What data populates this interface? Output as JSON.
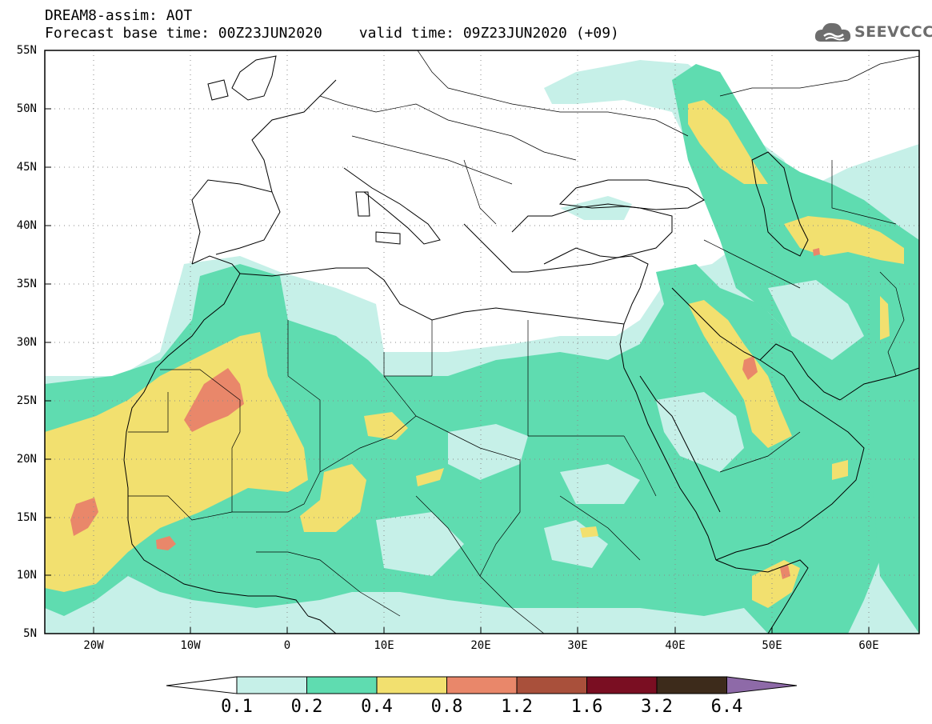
{
  "header": {
    "title": "DREAM8-assim: AOT",
    "base_time": "Forecast base time: 00Z23JUN2020",
    "valid_time": "valid time: 09Z23JUN2020 (+09)"
  },
  "logo": {
    "text": "SEEVCCC",
    "icon": "cloud-logo-icon"
  },
  "map": {
    "lat_labels": [
      "55N",
      "50N",
      "45N",
      "40N",
      "35N",
      "30N",
      "25N",
      "20N",
      "15N",
      "10N",
      "5N"
    ],
    "lon_labels": [
      "20W",
      "10W",
      "0",
      "10E",
      "20E",
      "30E",
      "40E",
      "50E",
      "60E"
    ],
    "lat_range": [
      5,
      55
    ],
    "lon_range": [
      -25,
      65
    ],
    "grid": "dotted"
  },
  "colorbar": {
    "labels": [
      "0.1",
      "0.2",
      "0.4",
      "0.8",
      "1.2",
      "1.6",
      "3.2",
      "6.4"
    ],
    "colors": [
      "#ffffff",
      "#c6f0e8",
      "#5fdcb0",
      "#f2e06f",
      "#e9876a",
      "#a9503b",
      "#7a0e22",
      "#3d2b1b",
      "#8e6aa8"
    ]
  },
  "colors": {
    "c1": "#c6f0e8",
    "c2": "#5fdcb0",
    "c3": "#f2e06f",
    "c4": "#e9876a"
  }
}
